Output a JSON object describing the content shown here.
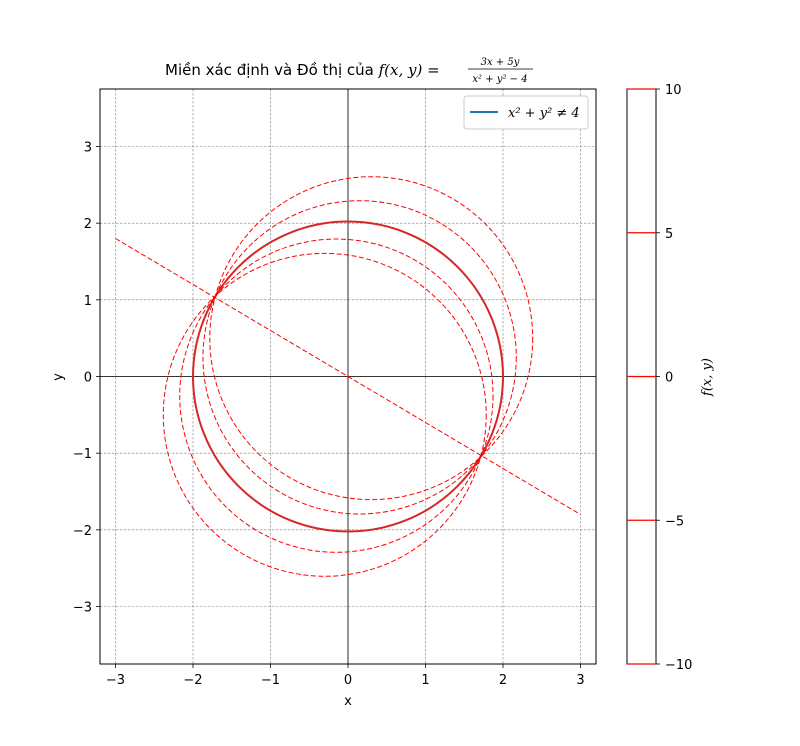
{
  "chart_data": {
    "type": "line",
    "title": {
      "prefix": "Miền xác định và Đồ thị của ",
      "func": "f(x, y) = ",
      "numerator": "3x + 5y",
      "denominator": "x² + y² − 4"
    },
    "xlabel": "x",
    "ylabel": "y",
    "xlim": [
      -3.2,
      3.2
    ],
    "ylim": [
      -3.75,
      3.75
    ],
    "xticks": [
      -3,
      -2,
      -1,
      0,
      1,
      2,
      3
    ],
    "yticks": [
      -3,
      -2,
      -1,
      0,
      1,
      2,
      3
    ],
    "xtick_labels": [
      "−3",
      "−2",
      "−1",
      "0",
      "1",
      "2",
      "3"
    ],
    "ytick_labels": [
      "−3",
      "−2",
      "−1",
      "0",
      "1",
      "2",
      "3"
    ],
    "grid": true,
    "legend": {
      "placement": "top-right",
      "entries": [
        {
          "label": "x² + y² ≠ 4",
          "color": "#1f77b4"
        }
      ]
    },
    "boundary_circle": {
      "center": [
        0,
        0
      ],
      "radius": 2,
      "color": "#d62728"
    },
    "level_set": {
      "color": "#ff0000",
      "style": "dashed",
      "line": {
        "from": [
          -3,
          1.8
        ],
        "to": [
          3,
          -1.8
        ],
        "level": 0
      },
      "circles": [
        {
          "level": 10,
          "center": [
            0.15,
            0.25
          ]
        },
        {
          "level": 5,
          "center": [
            0.3,
            0.5
          ]
        },
        {
          "level": -5,
          "center": [
            -0.3,
            -0.5
          ]
        },
        {
          "level": -10,
          "center": [
            -0.15,
            -0.25
          ]
        }
      ]
    },
    "colorbar": {
      "label": "f(x, y)",
      "range": [
        -10,
        10
      ],
      "ticks": [
        10,
        5,
        0,
        -5,
        -10
      ],
      "tick_labels": [
        "10",
        "5",
        "0",
        "−5",
        "−10"
      ],
      "lines": [
        10,
        5,
        0,
        -5,
        -10
      ],
      "line_color": "#ff0000"
    }
  }
}
